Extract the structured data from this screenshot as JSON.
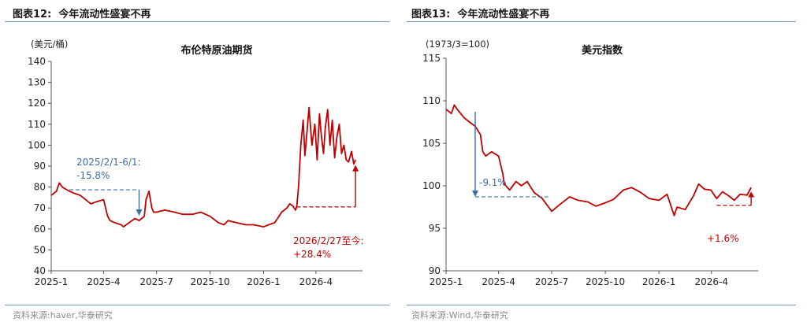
{
  "figures": [
    {
      "fig_label": "图表12:",
      "fig_title": "今年流动性盛宴不再",
      "source": "资料来源:haver,华泰研究"
    },
    {
      "fig_label": "图表13:",
      "fig_title": "今年流动性盛宴不再",
      "source": "资料来源:Wind,华泰研究"
    }
  ],
  "chart_data": [
    {
      "type": "line",
      "title": "布伦特原油期货",
      "unit_label": "(美元/桶)",
      "xlabel": "",
      "ylabel": "",
      "ylim": [
        40,
        140
      ],
      "yticks": [
        40,
        50,
        60,
        70,
        80,
        90,
        100,
        110,
        120,
        130,
        140
      ],
      "xlim": [
        "2025-01-01",
        "2026-06-20"
      ],
      "xticks": [
        "2025-1",
        "2025-4",
        "2025-7",
        "2025-10",
        "2026-1",
        "2026-4"
      ],
      "grid": false,
      "line_color": "#c00000",
      "series": [
        {
          "x": [
            "2025-01-01",
            "2025-01-10",
            "2025-01-15",
            "2025-01-20",
            "2025-02-01",
            "2025-02-10",
            "2025-02-20",
            "2025-03-01",
            "2025-03-10",
            "2025-03-20",
            "2025-04-01",
            "2025-04-08",
            "2025-04-12",
            "2025-04-20",
            "2025-05-01",
            "2025-05-05",
            "2025-05-15",
            "2025-05-25",
            "2025-06-01",
            "2025-06-10",
            "2025-06-13",
            "2025-06-18",
            "2025-06-23",
            "2025-06-26",
            "2025-07-01",
            "2025-07-15",
            "2025-08-01",
            "2025-08-15",
            "2025-09-01",
            "2025-09-15",
            "2025-10-01",
            "2025-10-15",
            "2025-10-25",
            "2025-11-01",
            "2025-11-15",
            "2025-12-01",
            "2025-12-15",
            "2026-01-01",
            "2026-01-10",
            "2026-01-20",
            "2026-01-25",
            "2026-02-01",
            "2026-02-10",
            "2026-02-15",
            "2026-02-20",
            "2026-02-25",
            "2026-02-27",
            "2026-03-02",
            "2026-03-06",
            "2026-03-10",
            "2026-03-13",
            "2026-03-17",
            "2026-03-20",
            "2026-03-25",
            "2026-03-30",
            "2026-04-03",
            "2026-04-07",
            "2026-04-10",
            "2026-04-14",
            "2026-04-17",
            "2026-04-21",
            "2026-04-25",
            "2026-04-29",
            "2026-05-03",
            "2026-05-07",
            "2026-05-11",
            "2026-05-15",
            "2026-05-19",
            "2026-05-23",
            "2026-05-27",
            "2026-06-01",
            "2026-06-05",
            "2026-06-08"
          ],
          "values": [
            76,
            78,
            82,
            80,
            78,
            77,
            76,
            74,
            72,
            73,
            74,
            66,
            64,
            63,
            62,
            61,
            63,
            65,
            64,
            66,
            74,
            78,
            70,
            68,
            68,
            69,
            68,
            67,
            67,
            68,
            66,
            63,
            62,
            64,
            63,
            62,
            62,
            61,
            62,
            63,
            65,
            68,
            70,
            72,
            71,
            69,
            71,
            80,
            100,
            112,
            95,
            108,
            118,
            100,
            110,
            93,
            115,
            105,
            96,
            108,
            117,
            100,
            112,
            94,
            104,
            110,
            96,
            100,
            93,
            92,
            97,
            91,
            93
          ]
        }
      ],
      "annotations": [
        {
          "text_line1": "2025/2/1-6/1:",
          "text_line2": "-15.8%",
          "color": "#3d6ea5",
          "from_date": "2025-02-01",
          "to_date": "2025-06-01",
          "from_value": 78.7,
          "to_value": 66.3
        },
        {
          "text_line1": "2026/2/27至今:",
          "text_line2": "+28.4%",
          "color": "#c00000",
          "from_date": "2026-02-27",
          "to_date": "2026-06-08",
          "from_value": 70.5,
          "to_value": 90.5
        }
      ]
    },
    {
      "type": "line",
      "title": "美元指数",
      "unit_label": "(1973/3=100)",
      "xlabel": "",
      "ylabel": "",
      "ylim": [
        90,
        115
      ],
      "yticks": [
        90,
        95,
        100,
        105,
        110,
        115
      ],
      "xlim": [
        "2025-01-01",
        "2026-06-20"
      ],
      "xticks": [
        "2025-1",
        "2025-4",
        "2025-7",
        "2025-10",
        "2026-1",
        "2026-4"
      ],
      "grid": false,
      "line_color": "#c00000",
      "series": [
        {
          "x": [
            "2025-01-01",
            "2025-01-10",
            "2025-01-15",
            "2025-01-20",
            "2025-02-01",
            "2025-02-10",
            "2025-02-20",
            "2025-03-01",
            "2025-03-05",
            "2025-03-10",
            "2025-03-20",
            "2025-04-01",
            "2025-04-08",
            "2025-04-11",
            "2025-04-20",
            "2025-05-01",
            "2025-05-10",
            "2025-05-20",
            "2025-06-01",
            "2025-06-15",
            "2025-07-01",
            "2025-07-15",
            "2025-08-01",
            "2025-08-15",
            "2025-09-01",
            "2025-09-15",
            "2025-10-01",
            "2025-10-15",
            "2025-11-01",
            "2025-11-15",
            "2025-12-01",
            "2025-12-15",
            "2026-01-01",
            "2026-01-15",
            "2026-01-27",
            "2026-02-01",
            "2026-02-15",
            "2026-03-01",
            "2026-03-10",
            "2026-03-20",
            "2026-03-31",
            "2026-04-10",
            "2026-04-20",
            "2026-05-01",
            "2026-05-10",
            "2026-05-20",
            "2026-06-01",
            "2026-06-08"
          ],
          "values": [
            109,
            108.5,
            109.5,
            109,
            108,
            107.5,
            107,
            106,
            104,
            103.5,
            104,
            103.5,
            101.5,
            100.2,
            99.5,
            100.5,
            100,
            100.5,
            99.2,
            98.5,
            97,
            97.8,
            98.7,
            98.3,
            98.1,
            97.6,
            98,
            98.4,
            99.5,
            99.8,
            99.2,
            98.5,
            98.3,
            99,
            96.5,
            97.5,
            97.2,
            98.8,
            100.2,
            99.6,
            99.5,
            98.5,
            99.3,
            98.8,
            98.3,
            99,
            98.9,
            99.8
          ]
        }
      ],
      "annotations": [
        {
          "text": "-9.1%",
          "color": "#3d6ea5",
          "from_date": "2025-02-20",
          "from_value": 108.7,
          "to_value": 98.7
        },
        {
          "text": "+1.6%",
          "color": "#c00000",
          "from_date": "2026-04-10",
          "to_date": "2026-06-08",
          "from_value": 97.7,
          "to_value": 99.3
        }
      ]
    }
  ]
}
